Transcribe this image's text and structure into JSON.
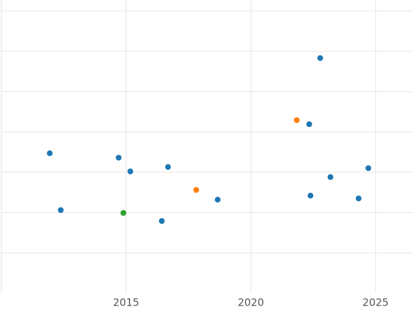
{
  "chart_data": {
    "type": "scatter",
    "series": [
      {
        "color": "#1f77b4",
        "x": [
          2011.94,
          2012.38,
          2014.7,
          2015.17,
          2016.43,
          2016.68,
          2018.67,
          2022.34,
          2022.39,
          2022.78,
          2023.19,
          2024.32,
          2024.71
        ],
        "values": [
          3.47,
          2.06,
          3.36,
          3.02,
          1.79,
          3.13,
          2.32,
          4.19,
          2.42,
          5.83,
          2.88,
          2.35,
          3.1
        ]
      },
      {
        "color": "#ff7f0e",
        "x": [
          2017.81,
          2021.84
        ],
        "values": [
          2.56,
          4.29
        ]
      },
      {
        "color": "#2ca02c",
        "x": [
          2014.89
        ],
        "values": [
          1.99
        ]
      }
    ],
    "xlim": [
      2010,
      2026.5
    ],
    "xticks": [
      2015,
      2020,
      2025
    ],
    "ylim": [
      0,
      7.27
    ],
    "yticks": [
      1,
      2,
      3,
      4,
      5,
      6,
      7
    ],
    "grid": true
  }
}
